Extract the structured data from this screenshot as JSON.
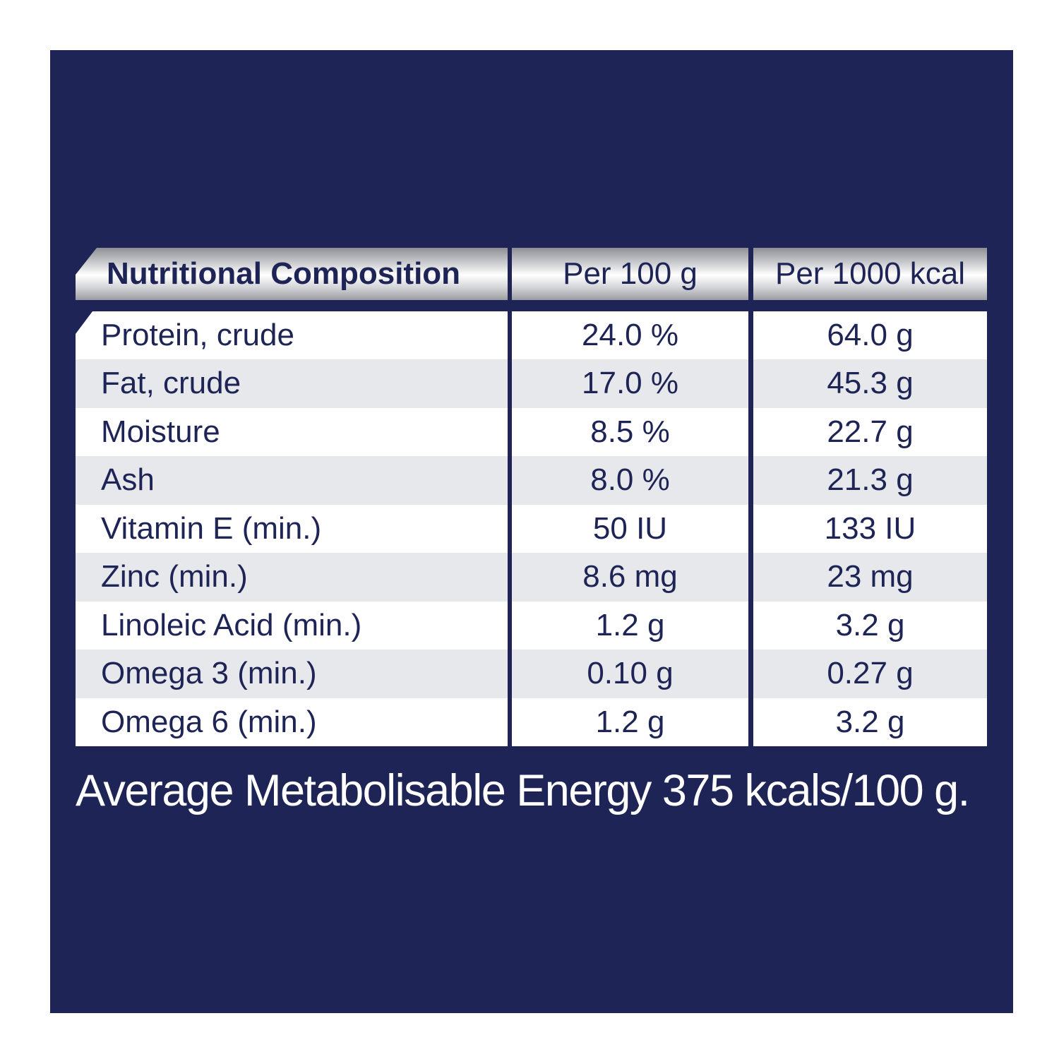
{
  "colors": {
    "page_background": "#ffffff",
    "panel": "#1e2556",
    "row_light": "#ffffff",
    "row_shaded": "#e7e8ec",
    "text_dark": "#1e2556",
    "header_silver": "#c9cacd"
  },
  "table": {
    "headers": [
      "Nutritional Composition",
      "Per 100 g",
      "Per 1000 kcal"
    ],
    "rows": [
      {
        "nutrient": "Protein, crude",
        "per_100g": "24.0 %",
        "per_1000kcal": "64.0 g"
      },
      {
        "nutrient": "Fat, crude",
        "per_100g": "17.0 %",
        "per_1000kcal": "45.3 g"
      },
      {
        "nutrient": "Moisture",
        "per_100g": "8.5 %",
        "per_1000kcal": "22.7 g"
      },
      {
        "nutrient": "Ash",
        "per_100g": "8.0 %",
        "per_1000kcal": "21.3 g"
      },
      {
        "nutrient": "Vitamin E (min.)",
        "per_100g": "50 IU",
        "per_1000kcal": "133 IU"
      },
      {
        "nutrient": "Zinc (min.)",
        "per_100g": "8.6 mg",
        "per_1000kcal": "23 mg"
      },
      {
        "nutrient": "Linoleic Acid (min.)",
        "per_100g": "1.2 g",
        "per_1000kcal": "3.2 g"
      },
      {
        "nutrient": "Omega 3 (min.)",
        "per_100g": "0.10 g",
        "per_1000kcal": "0.27 g"
      },
      {
        "nutrient": "Omega 6 (min.)",
        "per_100g": "1.2 g",
        "per_1000kcal": "3.2 g"
      }
    ]
  },
  "footer": {
    "energy_note": "Average Metabolisable Energy 375 kcals/100 g."
  }
}
